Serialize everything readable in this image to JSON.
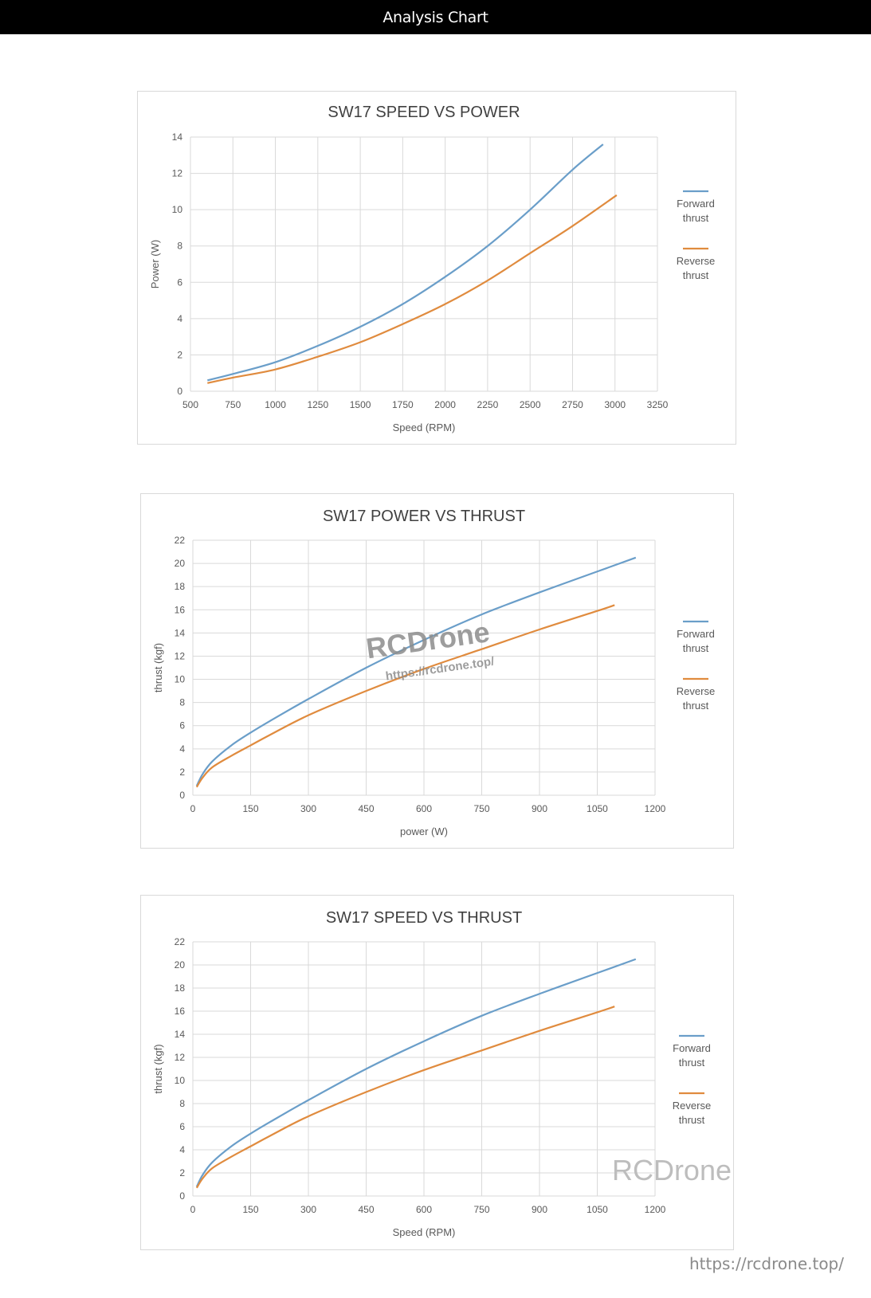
{
  "header": {
    "title": "Analysis Chart"
  },
  "colors": {
    "forward": "#6a9ec9",
    "reverse": "#e08b3e",
    "grid": "#d9d9d9",
    "text": "#595959",
    "title": "#404040"
  },
  "legend": {
    "forward": "Forward thrust",
    "reverse": "Reverse thrust"
  },
  "watermarks": {
    "brand": "RCDrone",
    "url": "https://rcdrone.top/"
  },
  "footer": {
    "url": "https://rcdrone.top/"
  },
  "chart_data": [
    {
      "type": "line",
      "title": "SW17 SPEED VS POWER",
      "xlabel": "Speed (RPM)",
      "ylabel": "Power (W)",
      "xlim": [
        500,
        3250
      ],
      "ylim": [
        0,
        14
      ],
      "xticks": [
        500,
        750,
        1000,
        1250,
        1500,
        1750,
        2000,
        2250,
        2500,
        2750,
        3000,
        3250
      ],
      "yticks": [
        0,
        2,
        4,
        6,
        8,
        10,
        12,
        14
      ],
      "grid": true,
      "legend_position": "right",
      "series": [
        {
          "name": "Forward thrust",
          "x": [
            600,
            750,
            1000,
            1250,
            1500,
            1750,
            2000,
            2250,
            2500,
            2750,
            2930
          ],
          "y": [
            0.6,
            0.95,
            1.6,
            2.5,
            3.55,
            4.8,
            6.3,
            8.0,
            10.0,
            12.2,
            13.6
          ]
        },
        {
          "name": "Reverse thrust",
          "x": [
            600,
            750,
            1000,
            1250,
            1500,
            1750,
            2000,
            2250,
            2500,
            2750,
            3010
          ],
          "y": [
            0.45,
            0.75,
            1.2,
            1.9,
            2.7,
            3.7,
            4.8,
            6.1,
            7.6,
            9.1,
            10.8
          ]
        }
      ]
    },
    {
      "type": "line",
      "title": "SW17 POWER VS THRUST",
      "xlabel": "power (W)",
      "ylabel": "thrust (kgf)",
      "xlim": [
        0,
        1200
      ],
      "ylim": [
        0,
        22
      ],
      "xticks": [
        0,
        150,
        300,
        450,
        600,
        750,
        900,
        1050,
        1200
      ],
      "yticks": [
        0,
        2,
        4,
        6,
        8,
        10,
        12,
        14,
        16,
        18,
        20,
        22
      ],
      "grid": true,
      "legend_position": "right",
      "series": [
        {
          "name": "Forward thrust",
          "x": [
            10,
            25,
            50,
            100,
            150,
            200,
            300,
            450,
            600,
            750,
            900,
            1050,
            1150
          ],
          "y": [
            0.8,
            1.8,
            2.9,
            4.3,
            5.4,
            6.4,
            8.3,
            11.0,
            13.4,
            15.6,
            17.5,
            19.3,
            20.5
          ]
        },
        {
          "name": "Reverse thrust",
          "x": [
            10,
            25,
            50,
            100,
            150,
            200,
            300,
            450,
            600,
            750,
            900,
            1050,
            1095
          ],
          "y": [
            0.7,
            1.5,
            2.4,
            3.4,
            4.3,
            5.2,
            6.9,
            9.0,
            10.9,
            12.6,
            14.3,
            15.9,
            16.4
          ]
        }
      ]
    },
    {
      "type": "line",
      "title": "SW17 SPEED VS THRUST",
      "xlabel": "Speed (RPM)",
      "ylabel": "thrust (kgf)",
      "xlim": [
        0,
        1200
      ],
      "ylim": [
        0,
        22
      ],
      "xticks": [
        0,
        150,
        300,
        450,
        600,
        750,
        900,
        1050,
        1200
      ],
      "yticks": [
        0,
        2,
        4,
        6,
        8,
        10,
        12,
        14,
        16,
        18,
        20,
        22
      ],
      "grid": true,
      "legend_position": "right",
      "series": [
        {
          "name": "Forward thrust",
          "x": [
            10,
            25,
            50,
            100,
            150,
            200,
            300,
            450,
            600,
            750,
            900,
            1050,
            1150
          ],
          "y": [
            0.8,
            1.8,
            2.9,
            4.3,
            5.4,
            6.4,
            8.3,
            11.0,
            13.4,
            15.6,
            17.5,
            19.3,
            20.5
          ]
        },
        {
          "name": "Reverse thrust",
          "x": [
            10,
            25,
            50,
            100,
            150,
            200,
            300,
            450,
            600,
            750,
            900,
            1050,
            1095
          ],
          "y": [
            0.7,
            1.5,
            2.4,
            3.4,
            4.3,
            5.2,
            6.9,
            9.0,
            10.9,
            12.6,
            14.3,
            15.9,
            16.4
          ]
        }
      ]
    }
  ]
}
